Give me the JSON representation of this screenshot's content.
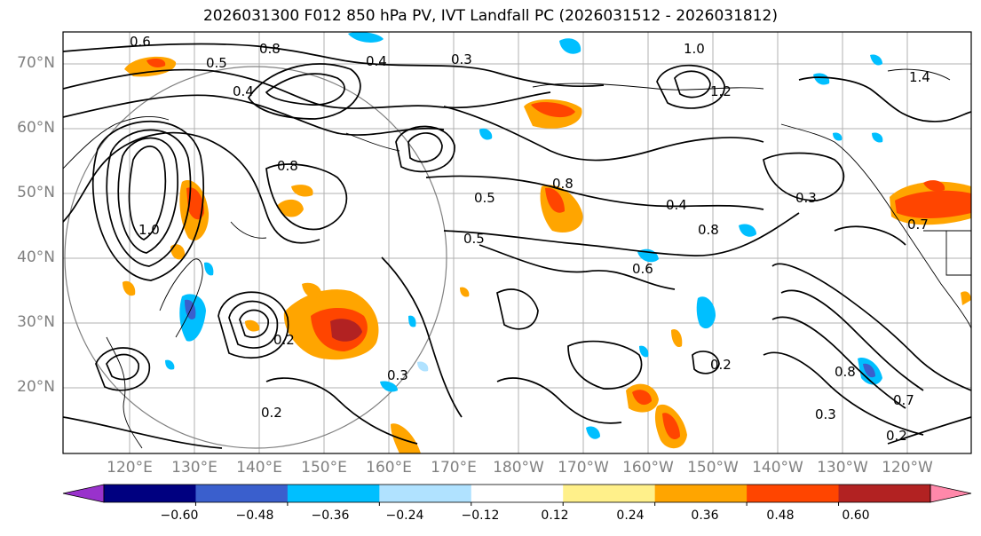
{
  "title": "2026031300 F012 850 hPa PV, IVT Landfall PC (2026031512 - 2026031812)",
  "map": {
    "lat_labels": [
      "70°N",
      "60°N",
      "50°N",
      "40°N",
      "30°N",
      "20°N"
    ],
    "lon_labels": [
      "120°E",
      "130°E",
      "140°E",
      "150°E",
      "160°E",
      "170°E",
      "180°W",
      "170°W",
      "160°W",
      "150°W",
      "140°W",
      "130°W",
      "120°W"
    ],
    "grid": true,
    "contour_color": "#000000",
    "contour_labels": [
      "0.6",
      "0.5",
      "0.8",
      "0.4",
      "0.3",
      "1.0",
      "1.2",
      "1.4",
      "0.8",
      "0.5",
      "0.8",
      "0.4",
      "0.8",
      "0.6",
      "0.3",
      "0.2",
      "0.3",
      "0.7",
      "0.2",
      "0.3",
      "0.2",
      "0.7",
      "0.8",
      "0.4",
      "0.2",
      "1.0",
      "0.5"
    ],
    "positive_shading": [
      "#ffe98a",
      "#ffa500",
      "#ff4500",
      "#b22222"
    ],
    "negative_shading": [
      "#add8f0",
      "#00bfff",
      "#3a5fcd"
    ]
  },
  "colorbar": {
    "ticks": [
      "−0.60",
      "−0.48",
      "−0.36",
      "−0.24",
      "−0.12",
      "0.12",
      "0.24",
      "0.36",
      "0.48",
      "0.60"
    ],
    "colors": [
      "#9932cc",
      "#000080",
      "#3a5fcd",
      "#00bfff",
      "#b0e2ff",
      "#ffffff",
      "#fff08a",
      "#ffa500",
      "#ff4500",
      "#b22222",
      "#ff88aa"
    ]
  }
}
